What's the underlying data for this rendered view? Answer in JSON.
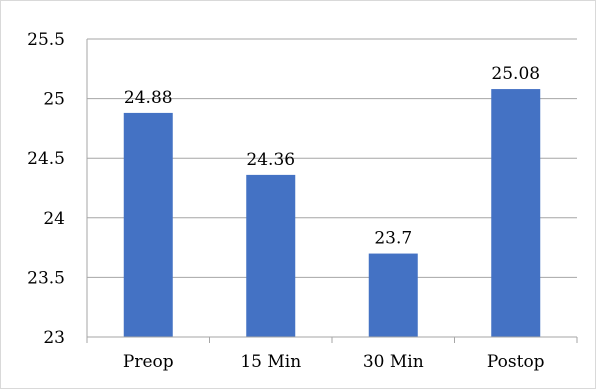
{
  "chart_data": {
    "type": "bar",
    "categories": [
      "Preop",
      "15 Min",
      "30 Min",
      "Postop"
    ],
    "values": [
      24.88,
      24.36,
      23.7,
      25.08
    ],
    "data_labels": [
      "24.88",
      "24.36",
      "23.7",
      "25.08"
    ],
    "title": "",
    "xlabel": "",
    "ylabel": "",
    "ylim": [
      23,
      25.5
    ],
    "yticks": [
      23,
      23.5,
      24,
      24.5,
      25,
      25.5
    ],
    "ytick_labels": [
      "23",
      "23.5",
      "24",
      "24.5",
      "25",
      "25.5"
    ],
    "grid": true,
    "legend": "none",
    "bar_color": "#4472c4",
    "grid_color": "#a6a6a6"
  }
}
